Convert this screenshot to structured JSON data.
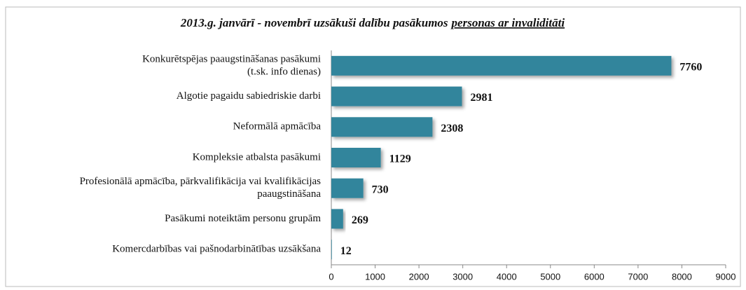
{
  "chart_data": {
    "type": "bar",
    "orientation": "horizontal",
    "title": [
      "2013.g. janvārī - novembrī uzsākuši dalību pasākumos",
      "personas ar invaliditāti"
    ],
    "categories": [
      [
        "Konkurētspējas paaugstināšanas pasākumi",
        "(t.sk. info dienas)"
      ],
      [
        "Algotie pagaidu sabiedriskie darbi"
      ],
      [
        "Neformālā apmācība"
      ],
      [
        "Kompleksie atbalsta pasākumi"
      ],
      [
        "Profesionālā apmācība, pārkvalifikācija vai kvalifikācijas",
        "paaugstināšana"
      ],
      [
        "Pasākumi noteiktām personu grupām"
      ],
      [
        "Komercdarbības vai pašnodarbinātības uzsākšana"
      ]
    ],
    "values": [
      7760,
      2981,
      2308,
      1129,
      730,
      269,
      12
    ],
    "color": "#31859c",
    "xlim": [
      0,
      9000
    ],
    "xticks": [
      0,
      1000,
      2000,
      3000,
      4000,
      5000,
      6000,
      7000,
      8000,
      9000
    ]
  }
}
